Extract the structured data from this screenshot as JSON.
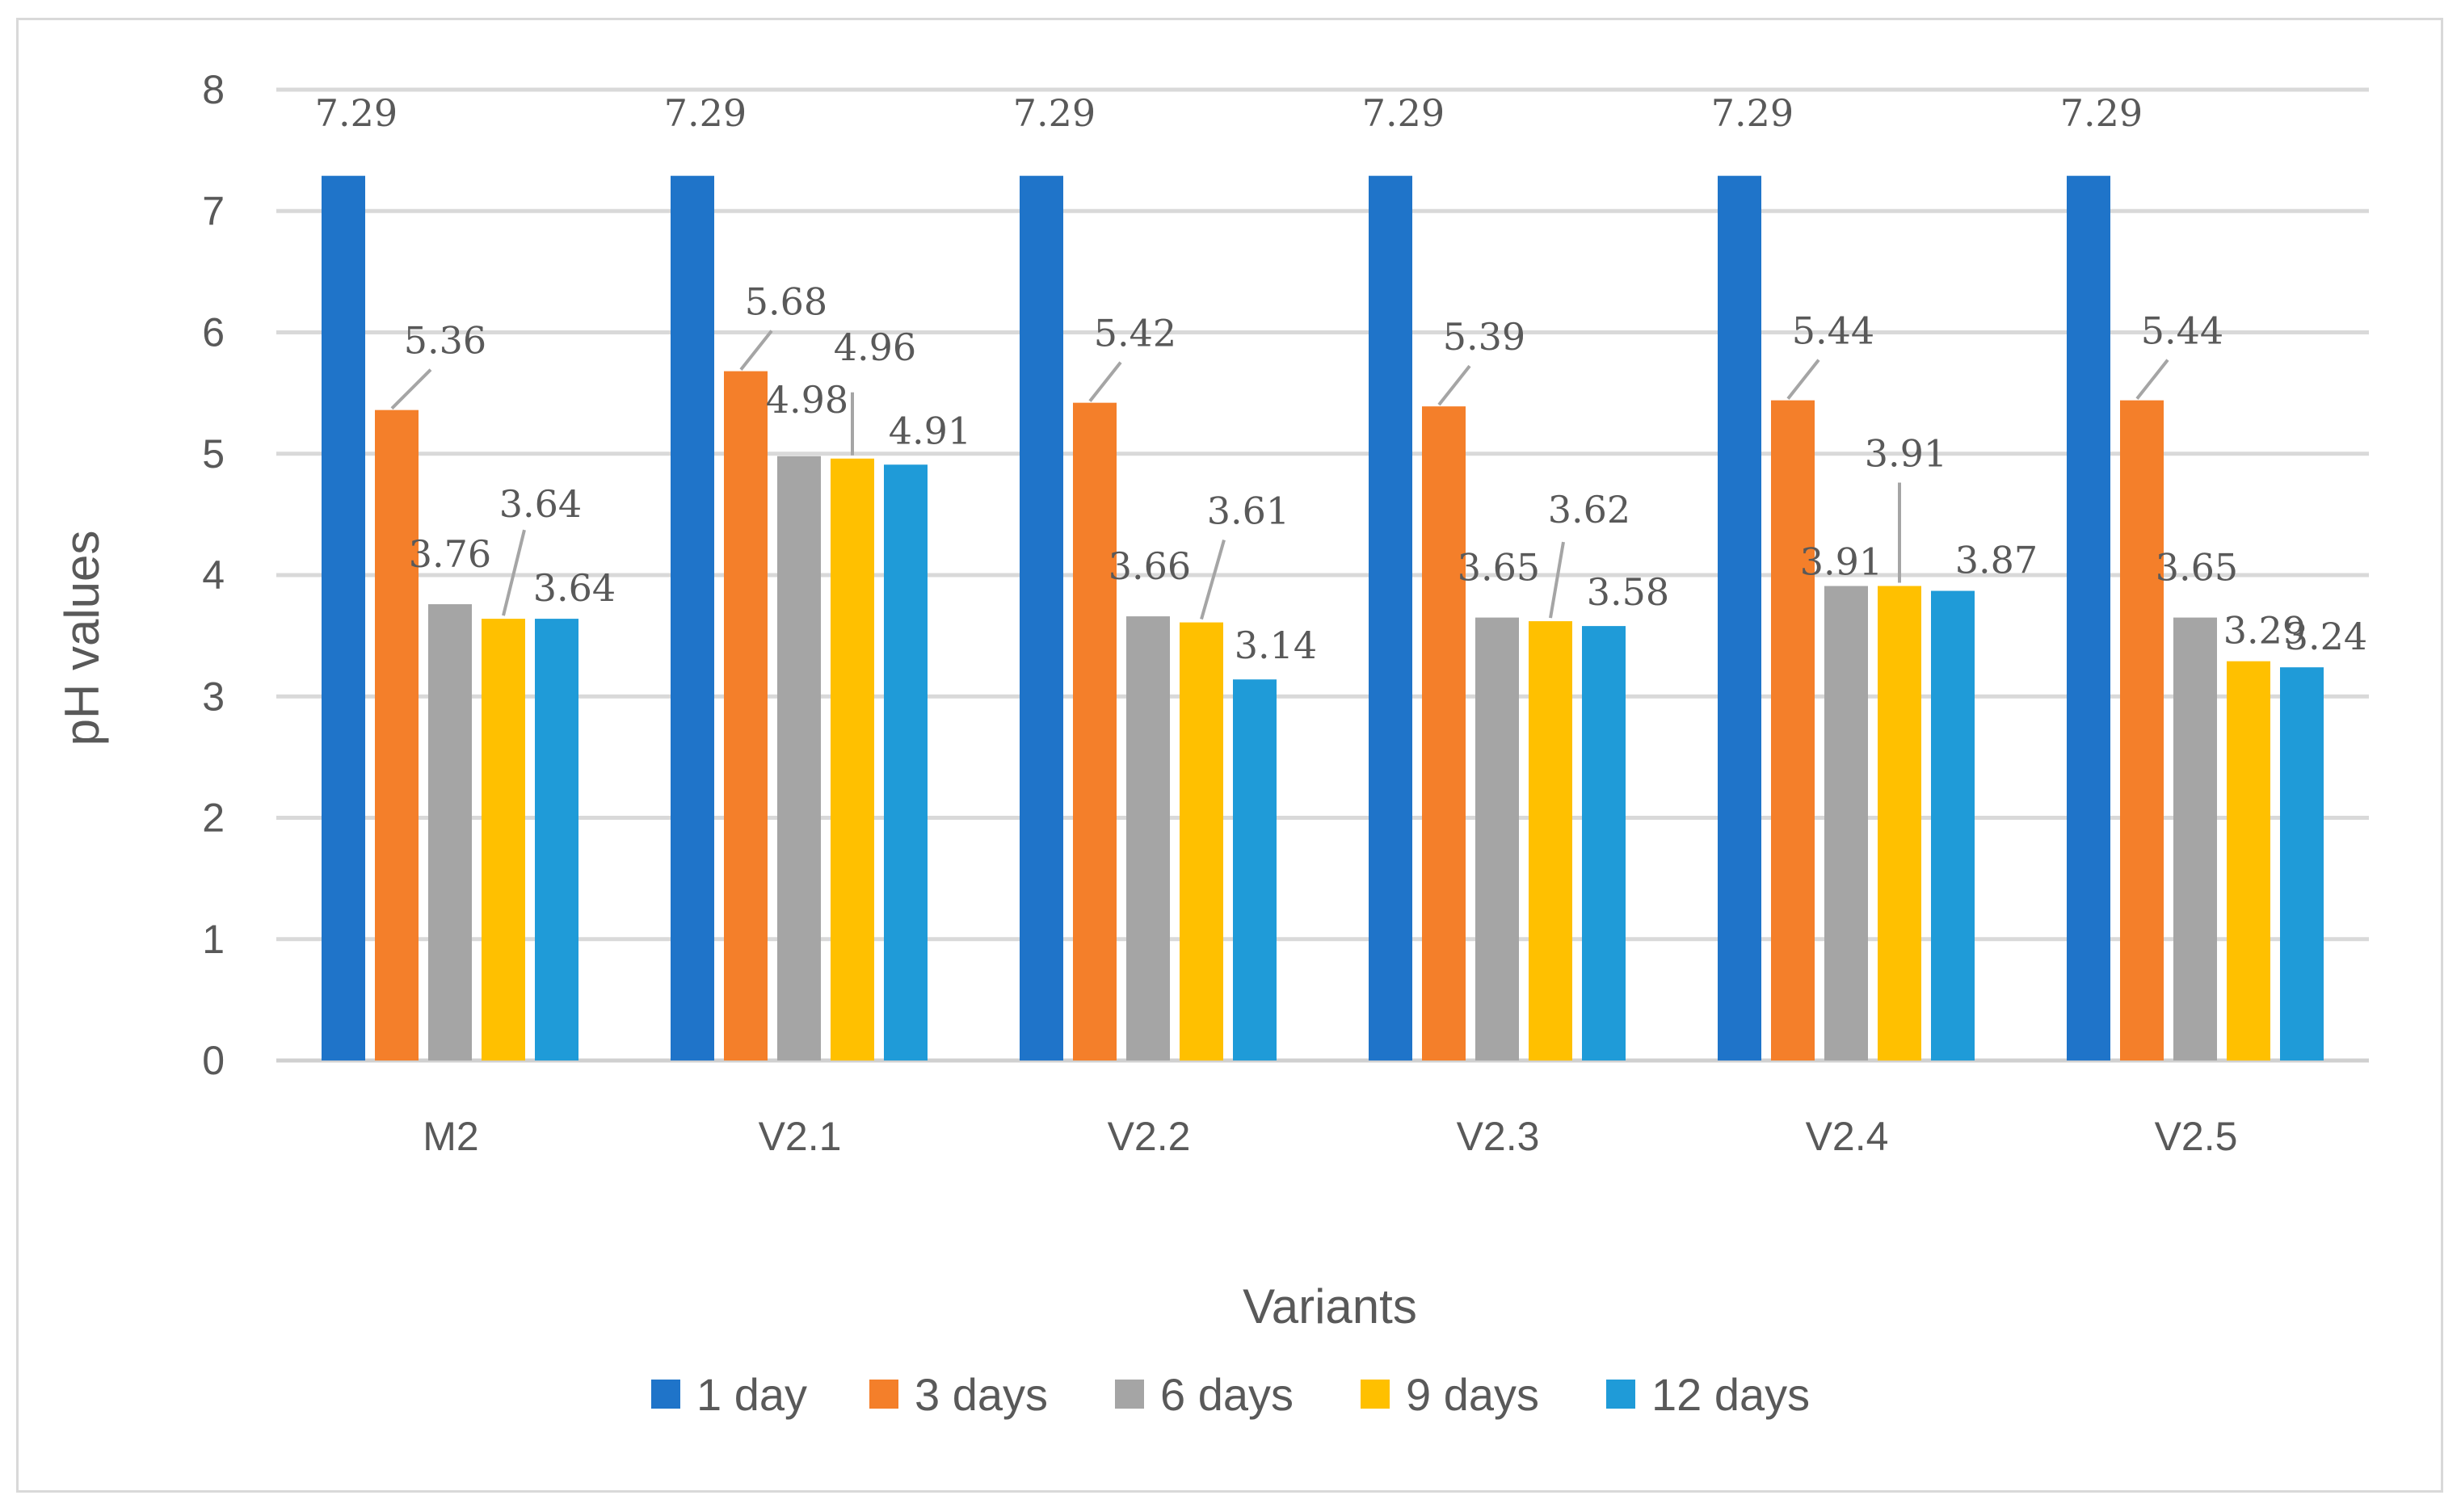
{
  "chart_data": {
    "type": "bar",
    "title": "",
    "xlabel": "Variants",
    "ylabel": "pH values",
    "ylim": [
      0,
      8
    ],
    "yticks": [
      "0",
      "1",
      "2",
      "3",
      "4",
      "5",
      "6",
      "7",
      "8"
    ],
    "grid": true,
    "legend_position": "bottom",
    "categories": [
      "M2",
      "V2.1",
      "V2.2",
      "V2.3",
      "V2.4",
      "V2.5"
    ],
    "series": [
      {
        "name": "1 day",
        "color": "#1f74c9",
        "values": [
          7.29,
          7.29,
          7.29,
          7.29,
          7.29,
          7.29
        ],
        "labels": [
          "7.29",
          "7.29",
          "7.29",
          "7.29",
          "7.29",
          "7.29"
        ]
      },
      {
        "name": "3 days",
        "color": "#f47f2a",
        "values": [
          5.36,
          5.68,
          5.42,
          5.39,
          5.44,
          5.44
        ],
        "labels": [
          "5.36",
          "5.68",
          "5.42",
          "5.39",
          "5.44",
          "5.44"
        ]
      },
      {
        "name": "6 days",
        "color": "#a5a5a5",
        "values": [
          3.76,
          4.98,
          3.66,
          3.65,
          3.91,
          3.65
        ],
        "labels": [
          "3.76",
          "4.98",
          "3.66",
          "3.65",
          "3.91",
          "3.65"
        ]
      },
      {
        "name": "9 days",
        "color": "#ffc000",
        "values": [
          3.64,
          4.96,
          3.61,
          3.62,
          3.91,
          3.29
        ],
        "labels": [
          "3.64",
          "4.96",
          "3.61",
          "3.62",
          "3.91",
          "3.29"
        ]
      },
      {
        "name": "12 days",
        "color": "#1f9bd8",
        "values": [
          3.64,
          4.91,
          3.14,
          3.58,
          3.87,
          3.24
        ],
        "labels": [
          "3.64",
          "4.91",
          "3.14",
          "3.58",
          "3.87",
          "3.24"
        ]
      }
    ]
  }
}
